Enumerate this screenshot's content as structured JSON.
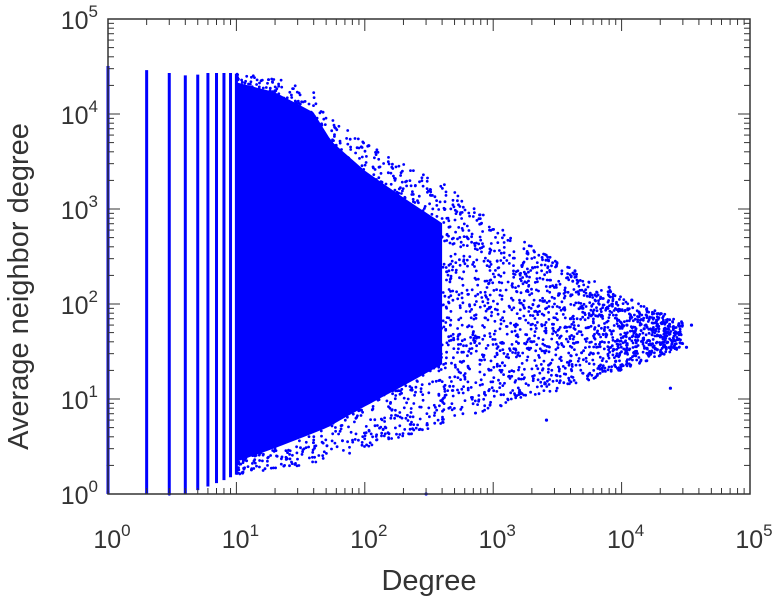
{
  "chart_data": {
    "type": "scatter",
    "title": "",
    "xlabel": "Degree",
    "ylabel": "Average neighbor degree",
    "xscale": "log",
    "yscale": "log",
    "xlim": [
      1,
      100000
    ],
    "ylim": [
      1,
      100000
    ],
    "grid": false,
    "legend": "none",
    "x_tick_labels": [
      {
        "base": "10",
        "exp": "0"
      },
      {
        "base": "10",
        "exp": "1"
      },
      {
        "base": "10",
        "exp": "2"
      },
      {
        "base": "10",
        "exp": "3"
      },
      {
        "base": "10",
        "exp": "4"
      },
      {
        "base": "10",
        "exp": "5"
      }
    ],
    "y_tick_labels": [
      {
        "base": "10",
        "exp": "0"
      },
      {
        "base": "10",
        "exp": "1"
      },
      {
        "base": "10",
        "exp": "2"
      },
      {
        "base": "10",
        "exp": "3"
      },
      {
        "base": "10",
        "exp": "4"
      },
      {
        "base": "10",
        "exp": "5"
      }
    ],
    "series": [
      {
        "color": "#0000ff",
        "marker": "dot",
        "description_of_extent": "dense vertical columns at integer degrees 1 to 10, then a fan-shaped cloud narrowing toward high degree",
        "columns": [
          {
            "x": 1,
            "y_min": 1.0,
            "y_max": 32000
          },
          {
            "x": 2,
            "y_min": 1.0,
            "y_max": 29000
          },
          {
            "x": 3,
            "y_min": 1.0,
            "y_max": 27000
          },
          {
            "x": 4,
            "y_min": 1.0,
            "y_max": 25500
          },
          {
            "x": 5,
            "y_min": 1.1,
            "y_max": 26000
          },
          {
            "x": 6,
            "y_min": 1.2,
            "y_max": 27000
          },
          {
            "x": 7,
            "y_min": 1.3,
            "y_max": 27000
          },
          {
            "x": 8,
            "y_min": 1.4,
            "y_max": 27000
          },
          {
            "x": 9,
            "y_min": 1.5,
            "y_max": 27000
          },
          {
            "x": 10,
            "y_min": 1.6,
            "y_max": 26500
          }
        ],
        "upper_envelope": [
          {
            "x": 10,
            "y": 26500
          },
          {
            "x": 20,
            "y": 24000
          },
          {
            "x": 40,
            "y": 17000
          },
          {
            "x": 55,
            "y": 9000
          },
          {
            "x": 100,
            "y": 5000
          },
          {
            "x": 200,
            "y": 3000
          },
          {
            "x": 500,
            "y": 1600
          },
          {
            "x": 1000,
            "y": 700
          },
          {
            "x": 3000,
            "y": 300
          },
          {
            "x": 10000,
            "y": 120
          },
          {
            "x": 30000,
            "y": 65
          }
        ],
        "lower_envelope": [
          {
            "x": 10,
            "y": 1.6
          },
          {
            "x": 20,
            "y": 1.8
          },
          {
            "x": 50,
            "y": 2.2
          },
          {
            "x": 100,
            "y": 3
          },
          {
            "x": 200,
            "y": 4
          },
          {
            "x": 500,
            "y": 6
          },
          {
            "x": 1000,
            "y": 8
          },
          {
            "x": 3000,
            "y": 12
          },
          {
            "x": 10000,
            "y": 20
          },
          {
            "x": 30000,
            "y": 35
          }
        ],
        "outliers": [
          {
            "x": 1,
            "y": 2.0
          },
          {
            "x": 1,
            "y": 1.05
          },
          {
            "x": 3,
            "y": 1.0
          },
          {
            "x": 300,
            "y": 1.0
          },
          {
            "x": 2600,
            "y": 6
          },
          {
            "x": 3000,
            "y": 150
          },
          {
            "x": 5000,
            "y": 90
          },
          {
            "x": 8000,
            "y": 150
          },
          {
            "x": 12000,
            "y": 110
          },
          {
            "x": 15000,
            "y": 55
          },
          {
            "x": 20000,
            "y": 45
          },
          {
            "x": 24000,
            "y": 13
          },
          {
            "x": 28000,
            "y": 62
          },
          {
            "x": 32000,
            "y": 35
          },
          {
            "x": 35000,
            "y": 60
          },
          {
            "x": 2000,
            "y": 40
          },
          {
            "x": 4000,
            "y": 70
          },
          {
            "x": 6000,
            "y": 30
          },
          {
            "x": 9000,
            "y": 25
          },
          {
            "x": 11000,
            "y": 60
          }
        ]
      }
    ]
  }
}
